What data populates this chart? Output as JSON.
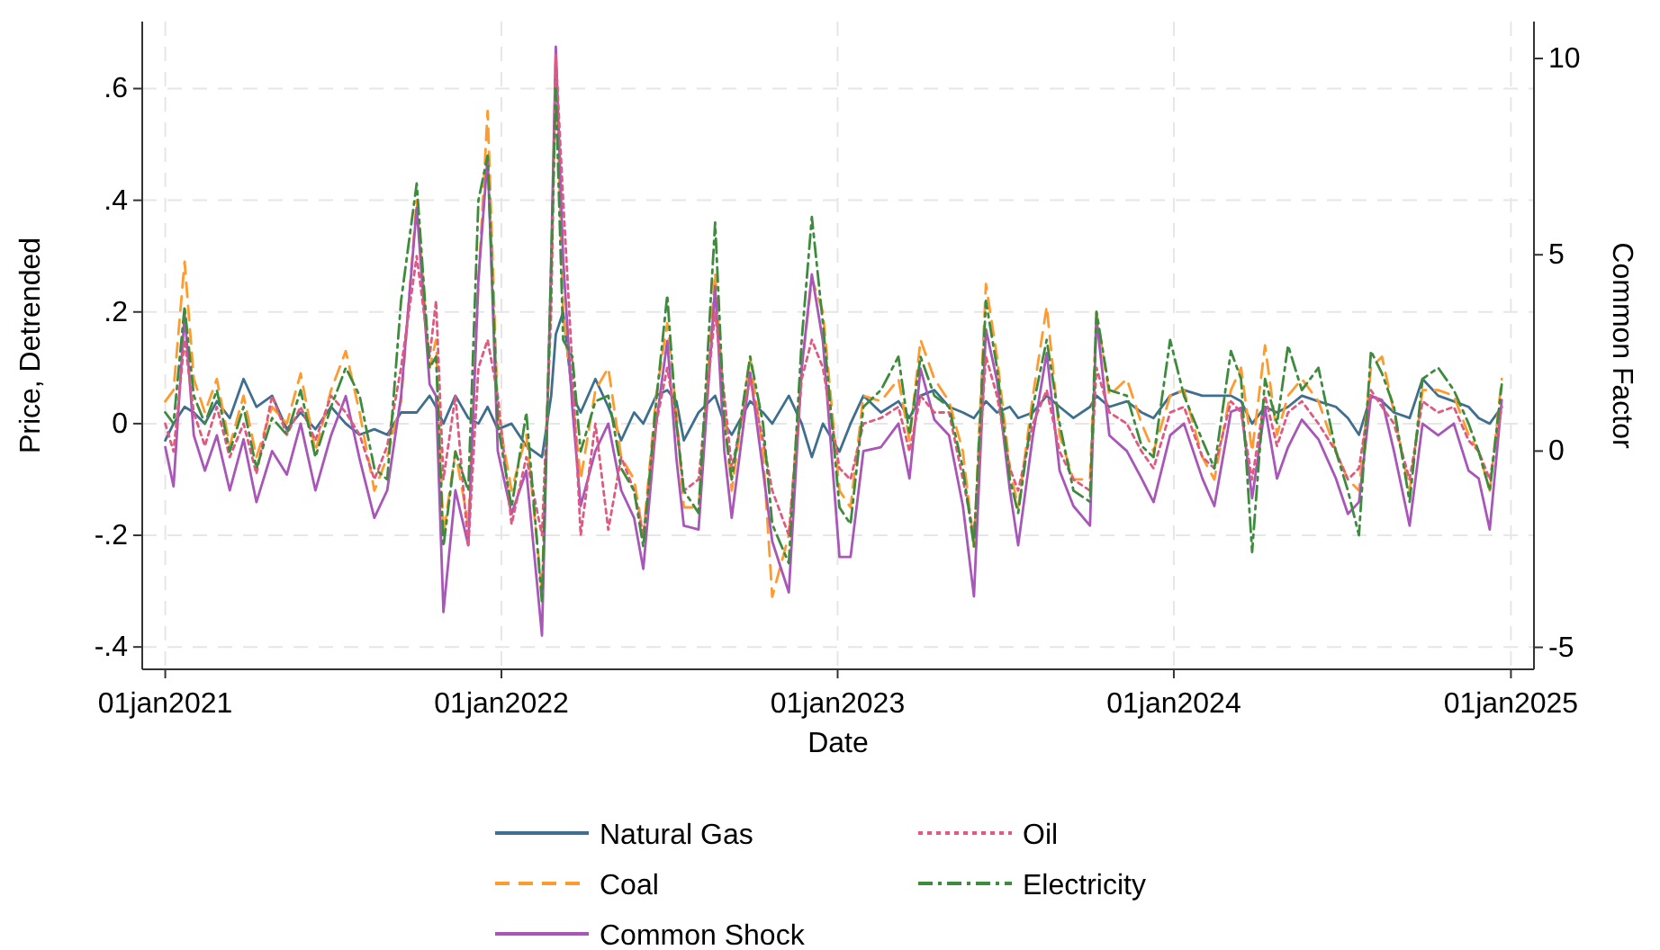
{
  "chart_data": {
    "type": "line",
    "xlabel": "Date",
    "ylabel": "Price, Detrended",
    "y2label": "Common Factor",
    "x": [
      "2021-01-01",
      "2021-01-10",
      "2021-01-22",
      "2021-02-01",
      "2021-02-13",
      "2021-02-26",
      "2021-03-12",
      "2021-03-27",
      "2021-04-10",
      "2021-04-27",
      "2021-05-13",
      "2021-05-28",
      "2021-06-13",
      "2021-06-30",
      "2021-07-16",
      "2021-07-31",
      "2021-08-16",
      "2021-08-30",
      "2021-09-14",
      "2021-10-01",
      "2021-10-15",
      "2021-10-22",
      "2021-10-30",
      "2021-11-12",
      "2021-11-26",
      "2021-12-07",
      "2021-12-17",
      "2021-12-28",
      "2022-01-12",
      "2022-01-28",
      "2022-02-14",
      "2022-02-24",
      "2022-03-01",
      "2022-03-09",
      "2022-03-19",
      "2022-03-28",
      "2022-04-13",
      "2022-04-27",
      "2022-05-11",
      "2022-05-25",
      "2022-06-04",
      "2022-06-18",
      "2022-06-30",
      "2022-07-10",
      "2022-07-18",
      "2022-08-03",
      "2022-08-21",
      "2022-08-31",
      "2022-09-08",
      "2022-09-28",
      "2022-10-12",
      "2022-10-22",
      "2022-11-09",
      "2022-11-23",
      "2022-12-04",
      "2022-12-16",
      "2023-01-03",
      "2023-01-15",
      "2023-01-29",
      "2023-02-17",
      "2023-03-08",
      "2023-03-20",
      "2023-04-01",
      "2023-04-16",
      "2023-05-02",
      "2023-05-17",
      "2023-05-29",
      "2023-06-11",
      "2023-06-23",
      "2023-07-07",
      "2023-07-16",
      "2023-08-01",
      "2023-08-16",
      "2023-08-30",
      "2023-09-14",
      "2023-10-02",
      "2023-10-09",
      "2023-10-23",
      "2023-11-11",
      "2023-11-27",
      "2023-12-10",
      "2023-12-28",
      "2024-01-12",
      "2024-02-01",
      "2024-02-14",
      "2024-03-03",
      "2024-03-14",
      "2024-03-26",
      "2024-04-09",
      "2024-04-22",
      "2024-05-04",
      "2024-05-19",
      "2024-06-06",
      "2024-06-25",
      "2024-07-08",
      "2024-07-20",
      "2024-08-02",
      "2024-08-14",
      "2024-08-27",
      "2024-09-13",
      "2024-09-27",
      "2024-10-14",
      "2024-10-31",
      "2024-11-16",
      "2024-11-27",
      "2024-12-09",
      "2024-12-22"
    ],
    "series": [
      {
        "name": "Natural Gas",
        "color": "#3f6f8f",
        "line_style": "solid",
        "values": [
          -0.03,
          0.0,
          0.03,
          0.02,
          0.0,
          0.04,
          0.01,
          0.08,
          0.03,
          0.05,
          -0.01,
          0.02,
          -0.01,
          0.03,
          0.0,
          -0.02,
          -0.01,
          -0.02,
          0.02,
          0.02,
          0.05,
          0.03,
          0.0,
          0.05,
          0.01,
          0.0,
          0.03,
          -0.01,
          0.0,
          -0.04,
          -0.06,
          0.05,
          0.16,
          0.2,
          0.05,
          0.02,
          0.08,
          0.03,
          -0.03,
          0.02,
          0.0,
          0.05,
          0.06,
          0.04,
          -0.03,
          0.02,
          0.05,
          0.0,
          -0.02,
          0.04,
          0.02,
          0.0,
          0.05,
          0.0,
          -0.06,
          0.0,
          -0.05,
          0.0,
          0.05,
          0.02,
          0.04,
          0.01,
          0.05,
          0.06,
          0.03,
          0.02,
          0.01,
          0.04,
          0.02,
          0.03,
          0.01,
          0.02,
          0.05,
          0.03,
          0.01,
          0.03,
          0.05,
          0.03,
          0.04,
          0.02,
          0.01,
          0.05,
          0.06,
          0.05,
          0.05,
          0.05,
          0.04,
          0.0,
          0.03,
          0.02,
          0.03,
          0.05,
          0.04,
          0.03,
          0.01,
          -0.02,
          0.05,
          0.04,
          0.02,
          0.01,
          0.08,
          0.05,
          0.04,
          0.03,
          0.01,
          0.0,
          0.03
        ]
      },
      {
        "name": "Coal",
        "color": "#ff9a2e",
        "line_style": "dashed",
        "values": [
          0.04,
          0.06,
          0.29,
          0.08,
          0.02,
          0.08,
          -0.04,
          0.05,
          -0.06,
          0.03,
          0.0,
          0.09,
          -0.05,
          0.06,
          0.13,
          0.02,
          -0.12,
          -0.06,
          0.04,
          0.4,
          0.1,
          0.15,
          -0.2,
          -0.05,
          -0.18,
          0.25,
          0.56,
          0.02,
          -0.12,
          -0.02,
          -0.3,
          0.25,
          0.66,
          0.2,
          0.05,
          -0.1,
          0.06,
          0.1,
          -0.06,
          -0.1,
          -0.2,
          0.05,
          0.18,
          0.02,
          -0.15,
          -0.15,
          0.27,
          0.02,
          -0.12,
          0.12,
          -0.05,
          -0.31,
          -0.2,
          0.1,
          0.26,
          0.2,
          -0.12,
          -0.15,
          0.05,
          0.04,
          0.08,
          -0.03,
          0.15,
          0.08,
          0.04,
          -0.05,
          -0.22,
          0.25,
          0.12,
          -0.08,
          -0.15,
          0.05,
          0.21,
          -0.02,
          -0.1,
          -0.1,
          0.2,
          0.05,
          0.08,
          0.0,
          -0.05,
          0.05,
          0.06,
          -0.06,
          -0.1,
          0.06,
          0.1,
          -0.05,
          0.14,
          -0.02,
          0.05,
          0.08,
          0.04,
          -0.05,
          -0.1,
          -0.12,
          0.1,
          0.12,
          0.02,
          -0.12,
          0.06,
          0.06,
          0.05,
          -0.02,
          -0.05,
          -0.12,
          0.08
        ]
      },
      {
        "name": "Common Shock",
        "color": "#a857b8",
        "line_style": "solid",
        "axis": "y2",
        "values": [
          0.1,
          -0.9,
          3.5,
          0.4,
          -0.5,
          0.4,
          -1.0,
          0.3,
          -1.3,
          0.0,
          -0.6,
          0.7,
          -1.0,
          0.4,
          1.4,
          -0.2,
          -1.7,
          -1.0,
          1.4,
          6.2,
          1.7,
          1.4,
          -4.1,
          -1.0,
          -2.4,
          4.4,
          7.5,
          0.0,
          -1.6,
          -0.5,
          -4.7,
          4.9,
          10.3,
          4.9,
          1.1,
          -1.4,
          0.0,
          0.7,
          -1.0,
          -1.7,
          -3.0,
          0.7,
          2.8,
          -0.2,
          -1.9,
          -2.0,
          4.2,
          0.0,
          -1.7,
          2.0,
          -0.5,
          -2.3,
          -3.6,
          2.1,
          4.5,
          2.8,
          -2.7,
          -2.7,
          0.0,
          0.1,
          0.7,
          -0.7,
          2.1,
          0.8,
          0.4,
          -1.4,
          -3.7,
          3.1,
          1.8,
          -1.0,
          -2.4,
          0.4,
          2.5,
          -0.5,
          -1.4,
          -1.9,
          3.4,
          0.4,
          0.0,
          -0.7,
          -1.3,
          0.4,
          0.7,
          -0.7,
          -1.4,
          1.0,
          1.1,
          -1.2,
          1.1,
          -0.7,
          0.1,
          0.8,
          0.3,
          -0.7,
          -1.6,
          -1.3,
          1.4,
          1.3,
          0.0,
          -1.9,
          0.7,
          0.4,
          0.7,
          -0.5,
          -0.7,
          -2.0,
          1.3
        ]
      },
      {
        "name": "Oil",
        "color": "#e05a80",
        "line_style": "dotted",
        "values": [
          0.0,
          -0.05,
          0.15,
          0.02,
          -0.04,
          0.03,
          -0.06,
          0.0,
          -0.09,
          0.05,
          -0.02,
          0.03,
          -0.03,
          0.05,
          0.02,
          -0.02,
          -0.1,
          -0.04,
          0.1,
          0.3,
          0.12,
          0.22,
          -0.1,
          0.05,
          -0.22,
          0.1,
          0.15,
          0.05,
          -0.18,
          -0.06,
          -0.2,
          0.2,
          0.66,
          0.4,
          0.1,
          -0.2,
          0.0,
          -0.19,
          -0.06,
          -0.12,
          -0.2,
          0.0,
          0.1,
          0.0,
          -0.12,
          -0.1,
          0.2,
          0.05,
          -0.08,
          0.08,
          -0.03,
          -0.12,
          -0.2,
          0.08,
          0.15,
          0.1,
          -0.08,
          -0.1,
          0.0,
          0.01,
          0.03,
          -0.05,
          0.05,
          0.02,
          0.02,
          -0.1,
          -0.2,
          0.12,
          0.05,
          -0.08,
          -0.12,
          0.0,
          0.06,
          -0.05,
          -0.1,
          -0.12,
          0.1,
          0.02,
          0.0,
          -0.05,
          -0.08,
          0.02,
          0.03,
          -0.06,
          -0.08,
          0.04,
          0.02,
          -0.1,
          0.05,
          -0.04,
          0.02,
          0.04,
          0.0,
          -0.05,
          -0.1,
          -0.08,
          0.06,
          0.03,
          0.0,
          -0.1,
          0.04,
          0.02,
          0.03,
          -0.03,
          -0.05,
          -0.1,
          0.03
        ]
      },
      {
        "name": "Electricity",
        "color": "#3d8b3d",
        "line_style": "dashdot",
        "values": [
          0.02,
          0.0,
          0.21,
          0.05,
          0.0,
          0.06,
          -0.05,
          0.03,
          -0.08,
          0.01,
          -0.02,
          0.06,
          -0.06,
          0.03,
          0.1,
          0.05,
          -0.08,
          -0.1,
          0.22,
          0.43,
          0.1,
          0.12,
          -0.22,
          -0.05,
          -0.12,
          0.4,
          0.48,
          0.0,
          -0.15,
          0.02,
          -0.32,
          0.28,
          0.6,
          0.15,
          0.12,
          -0.05,
          0.04,
          0.05,
          -0.08,
          -0.12,
          -0.22,
          0.04,
          0.23,
          0.0,
          -0.12,
          -0.16,
          0.36,
          0.0,
          -0.1,
          0.12,
          0.0,
          -0.18,
          -0.25,
          0.15,
          0.37,
          0.18,
          -0.15,
          -0.18,
          0.03,
          0.06,
          0.12,
          -0.02,
          0.12,
          0.05,
          0.03,
          -0.08,
          -0.22,
          0.22,
          0.1,
          -0.1,
          -0.16,
          0.03,
          0.15,
          0.0,
          -0.12,
          -0.14,
          0.2,
          0.06,
          0.05,
          -0.04,
          -0.06,
          0.15,
          0.05,
          -0.03,
          -0.08,
          0.13,
          0.08,
          -0.23,
          0.08,
          0.0,
          0.14,
          0.06,
          0.1,
          -0.05,
          -0.12,
          -0.2,
          0.13,
          0.09,
          0.03,
          -0.14,
          0.08,
          0.1,
          0.06,
          0.0,
          -0.05,
          -0.12,
          0.07
        ]
      }
    ],
    "xlim": [
      "2020-12-07",
      "2025-01-26"
    ],
    "xticks": [
      {
        "value": "2021-01-01",
        "label": "01jan2021"
      },
      {
        "value": "2022-01-01",
        "label": "01jan2022"
      },
      {
        "value": "2023-01-01",
        "label": "01jan2023"
      },
      {
        "value": "2024-01-01",
        "label": "01jan2024"
      },
      {
        "value": "2025-01-01",
        "label": "01jan2025"
      }
    ],
    "ylim": [
      -0.44,
      0.72
    ],
    "yticks": [
      {
        "value": -0.4,
        "label": "-.4"
      },
      {
        "value": -0.2,
        "label": "-.2"
      },
      0,
      {
        "value": 0.2,
        "label": ".2"
      },
      {
        "value": 0.4,
        "label": ".4"
      },
      {
        "value": 0.6,
        "label": ".6"
      }
    ],
    "y2lim": [
      -5.56,
      10.94
    ],
    "y2ticks": [
      -5,
      0,
      5,
      10
    ],
    "grid": true,
    "legend": "bottom"
  }
}
